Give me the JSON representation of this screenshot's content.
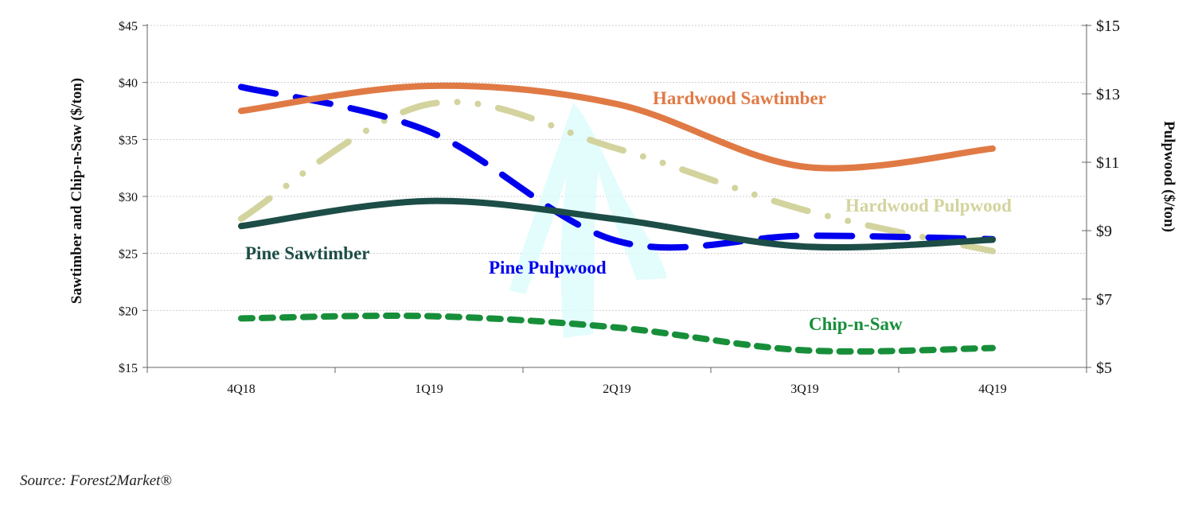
{
  "chart_data": {
    "type": "line",
    "categories": [
      "4Q18",
      "1Q19",
      "2Q19",
      "3Q19",
      "4Q19"
    ],
    "y_left": {
      "label": "Sawtimber and Chip-n-Saw ($/ton)",
      "range": [
        15,
        45
      ],
      "ticks": [
        "$15",
        "$20",
        "$25",
        "$30",
        "$35",
        "$40",
        "$45"
      ]
    },
    "y_right": {
      "label": "Pulpwood ($/ton)",
      "range": [
        5,
        15
      ],
      "ticks": [
        "$5",
        "$7",
        "$9",
        "$11",
        "$13",
        "$15"
      ]
    },
    "grid": true,
    "series": [
      {
        "name": "Hardwood Sawtimber",
        "axis": "left",
        "color": "#e07a45",
        "style": "solid",
        "values": [
          37.5,
          39.7,
          38.1,
          32.6,
          34.2
        ]
      },
      {
        "name": "Pine Sawtimber",
        "axis": "left",
        "color": "#1d4d47",
        "style": "solid",
        "values": [
          27.4,
          29.6,
          28.0,
          25.6,
          26.2
        ]
      },
      {
        "name": "Chip-n-Saw",
        "axis": "left",
        "color": "#178f3a",
        "style": "short-dash",
        "values": [
          19.3,
          19.5,
          18.5,
          16.5,
          16.7
        ]
      },
      {
        "name": "Pine Pulpwood",
        "axis": "right",
        "color": "#0000ee",
        "style": "long-dash",
        "values": [
          13.2,
          11.9,
          8.7,
          8.85,
          8.75
        ]
      },
      {
        "name": "Hardwood Pulpwood",
        "axis": "right",
        "color": "#d3d39e",
        "style": "dash-dot-dot",
        "values": [
          9.35,
          12.7,
          11.4,
          9.6,
          8.4
        ]
      }
    ]
  },
  "source": "Source: Forest2Market®",
  "watermark": "tree-logo"
}
